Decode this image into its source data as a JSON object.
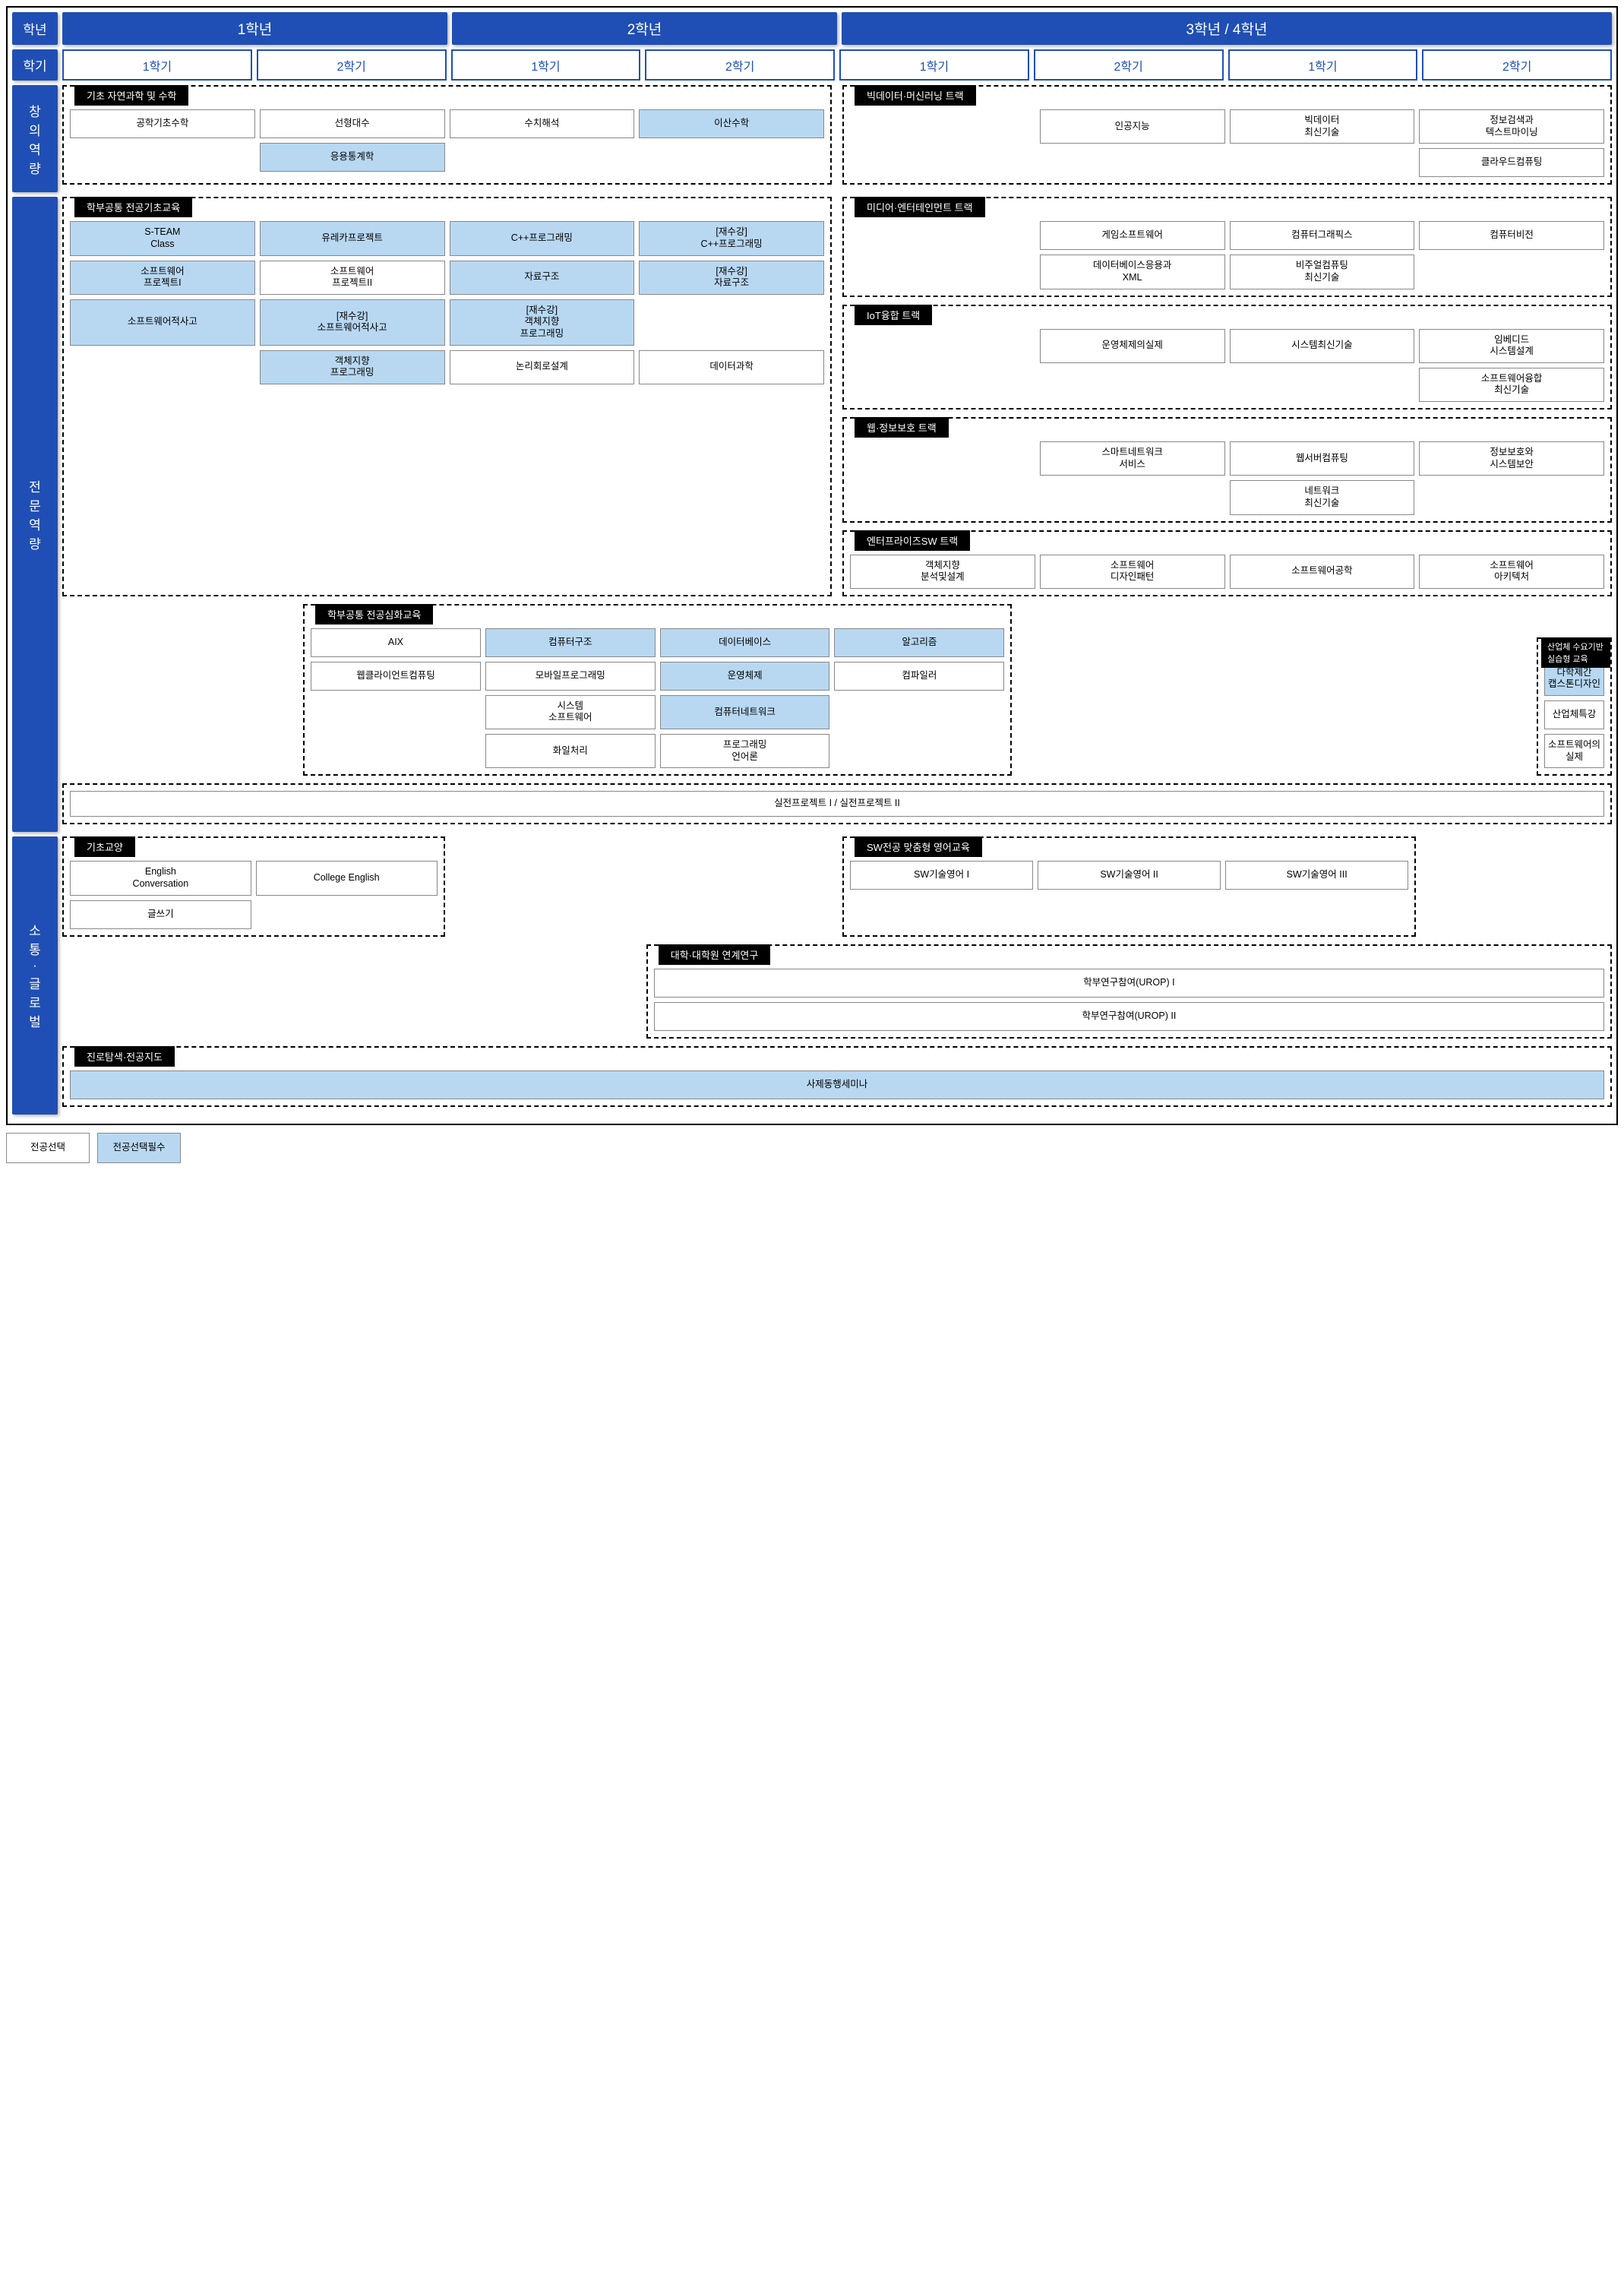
{
  "colors": {
    "primary": "#1f4fb4",
    "required_bg": "#b8d8f2",
    "border": "#000000"
  },
  "header": {
    "grade_label": "학년",
    "semester_label": "학기",
    "grades": [
      "1학년",
      "2학년",
      "3학년 / 4학년"
    ],
    "semesters": [
      "1학기",
      "2학기",
      "1학기",
      "2학기",
      "1학기",
      "2학기",
      "1학기",
      "2학기"
    ]
  },
  "categories": {
    "creative": "창\n의\n역\n량",
    "pro": "전\n문\n역\n량",
    "global": "소\n통\n·\n글\n로\n벌"
  },
  "groups": {
    "basic_sci": {
      "title": "기초 자연과학 및 수학",
      "courses": [
        {
          "name": "공학기초수학",
          "req": false,
          "col": 1,
          "row": 1
        },
        {
          "name": "선형대수",
          "req": false,
          "col": 2,
          "row": 1
        },
        {
          "name": "수치해석",
          "req": false,
          "col": 3,
          "row": 1
        },
        {
          "name": "이산수학",
          "req": true,
          "col": 4,
          "row": 1
        },
        {
          "name": "응용통계학",
          "req": true,
          "col": 2,
          "row": 2
        }
      ]
    },
    "bigdata": {
      "title": "빅데이터·머신러닝 트랙",
      "courses": [
        {
          "name": "인공지능",
          "req": false,
          "col": 2,
          "row": 1
        },
        {
          "name": "빅데이터\n최신기술",
          "req": false,
          "col": 3,
          "row": 1
        },
        {
          "name": "정보검색과\n텍스트마이닝",
          "req": false,
          "col": 4,
          "row": 1
        },
        {
          "name": "클라우드컴퓨팅",
          "req": false,
          "col": 4,
          "row": 2
        }
      ]
    },
    "dept_basic": {
      "title": "학부공통 전공기초교육",
      "courses": [
        {
          "name": "S-TEAM\nClass",
          "req": true,
          "col": 1,
          "row": 1
        },
        {
          "name": "유레카프로젝트",
          "req": true,
          "col": 2,
          "row": 1
        },
        {
          "name": "C++프로그래밍",
          "req": true,
          "col": 3,
          "row": 1
        },
        {
          "name": "[재수강]\nC++프로그래밍",
          "req": true,
          "col": 4,
          "row": 1
        },
        {
          "name": "소프트웨어\n프로젝트I",
          "req": true,
          "col": 1,
          "row": 2
        },
        {
          "name": "소프트웨어\n프로젝트II",
          "req": false,
          "col": 2,
          "row": 2
        },
        {
          "name": "자료구조",
          "req": true,
          "col": 3,
          "row": 2
        },
        {
          "name": "[재수강]\n자료구조",
          "req": true,
          "col": 4,
          "row": 2
        },
        {
          "name": "소프트웨어적사고",
          "req": true,
          "col": 1,
          "row": 3
        },
        {
          "name": "[재수강]\n소프트웨어적사고",
          "req": true,
          "col": 2,
          "row": 3
        },
        {
          "name": "[재수강]\n객체지향\n프로그래밍",
          "req": true,
          "col": 3,
          "row": 3
        },
        {
          "name": "객체지향\n프로그래밍",
          "req": true,
          "col": 2,
          "row": 4
        },
        {
          "name": "논리회로설계",
          "req": false,
          "col": 3,
          "row": 4
        },
        {
          "name": "데이터과학",
          "req": false,
          "col": 4,
          "row": 4
        }
      ]
    },
    "media": {
      "title": "미디어·엔터테인먼트 트랙",
      "courses": [
        {
          "name": "게임소프트웨어",
          "req": false,
          "col": 2,
          "row": 1
        },
        {
          "name": "컴퓨터그래픽스",
          "req": false,
          "col": 3,
          "row": 1
        },
        {
          "name": "컴퓨터비전",
          "req": false,
          "col": 4,
          "row": 1
        },
        {
          "name": "데이터베이스응용과\nXML",
          "req": false,
          "col": 2,
          "row": 2
        },
        {
          "name": "비주얼컴퓨팅\n최신기술",
          "req": false,
          "col": 3,
          "row": 2
        }
      ]
    },
    "iot": {
      "title": "IoT융합 트랙",
      "courses": [
        {
          "name": "운영체제의실제",
          "req": false,
          "col": 2,
          "row": 1
        },
        {
          "name": "시스템최신기술",
          "req": false,
          "col": 3,
          "row": 1
        },
        {
          "name": "임베디드\n시스템설계",
          "req": false,
          "col": 4,
          "row": 1
        },
        {
          "name": "소프트웨어융합\n최신기술",
          "req": false,
          "col": 4,
          "row": 2
        }
      ]
    },
    "web": {
      "title": "웹·정보보호 트랙",
      "courses": [
        {
          "name": "스마트네트워크\n서비스",
          "req": false,
          "col": 2,
          "row": 1
        },
        {
          "name": "웹서버컴퓨팅",
          "req": false,
          "col": 3,
          "row": 1
        },
        {
          "name": "정보보호와\n시스템보안",
          "req": false,
          "col": 4,
          "row": 1
        },
        {
          "name": "네트워크\n최신기술",
          "req": false,
          "col": 3,
          "row": 2
        }
      ]
    },
    "enterprise": {
      "title": "엔터프라이즈SW 트랙",
      "courses": [
        {
          "name": "객체지향\n분석및설계",
          "req": false,
          "col": 1,
          "row": 1
        },
        {
          "name": "소프트웨어\n디자인패턴",
          "req": false,
          "col": 2,
          "row": 1
        },
        {
          "name": "소프트웨어공학",
          "req": false,
          "col": 3,
          "row": 1
        },
        {
          "name": "소프트웨어\n아키텍처",
          "req": false,
          "col": 4,
          "row": 1
        }
      ]
    },
    "dept_adv": {
      "title": "학부공통 전공심화교육",
      "courses": [
        {
          "name": "AIX",
          "req": false,
          "col": 1,
          "row": 1
        },
        {
          "name": "컴퓨터구조",
          "req": true,
          "col": 2,
          "row": 1
        },
        {
          "name": "데이터베이스",
          "req": true,
          "col": 3,
          "row": 1
        },
        {
          "name": "알고리즘",
          "req": true,
          "col": 4,
          "row": 1
        },
        {
          "name": "웹클라이언트컴퓨팅",
          "req": false,
          "col": 1,
          "row": 2
        },
        {
          "name": "모바일프로그래밍",
          "req": false,
          "col": 2,
          "row": 2
        },
        {
          "name": "운영체제",
          "req": true,
          "col": 3,
          "row": 2
        },
        {
          "name": "컴파일러",
          "req": false,
          "col": 4,
          "row": 2
        },
        {
          "name": "시스템\n소프트웨어",
          "req": false,
          "col": 2,
          "row": 3
        },
        {
          "name": "컴퓨터네트워크",
          "req": true,
          "col": 3,
          "row": 3
        },
        {
          "name": "화일처리",
          "req": false,
          "col": 2,
          "row": 4
        },
        {
          "name": "프로그래밍\n언어론",
          "req": false,
          "col": 3,
          "row": 4
        }
      ]
    },
    "industry": {
      "title": "산업체 수요기반 실습형 교육",
      "courses": [
        {
          "name": "다학제간\n캡스톤디자인",
          "req": true,
          "col": 1,
          "row": 1
        },
        {
          "name": "산업체특강",
          "req": false,
          "col": 1,
          "row": 2
        },
        {
          "name": "소프트웨어의\n실제",
          "req": false,
          "col": 1,
          "row": 3
        }
      ]
    },
    "project": "실전프로젝트 I / 실전프로젝트 II",
    "liberal": {
      "title": "기초교양",
      "courses": [
        {
          "name": "English\nConversation",
          "req": false,
          "col": 1,
          "row": 1
        },
        {
          "name": "College English",
          "req": false,
          "col": 2,
          "row": 1
        },
        {
          "name": "글쓰기",
          "req": false,
          "col": 1,
          "row": 2
        }
      ]
    },
    "sw_eng": {
      "title": "SW전공 맞춤형 영어교육",
      "courses": [
        {
          "name": "SW기술영어 I",
          "req": false,
          "col": 1,
          "row": 1
        },
        {
          "name": "SW기술영어 II",
          "req": false,
          "col": 2,
          "row": 1
        },
        {
          "name": "SW기술영어 III",
          "req": false,
          "col": 3,
          "row": 1
        }
      ]
    },
    "grad": {
      "title": "대학·대학원 연계연구",
      "courses": [
        {
          "name": "학부연구참여(UROP) I",
          "req": false
        },
        {
          "name": "학부연구참여(UROP) II",
          "req": false
        }
      ]
    },
    "career": {
      "title": "진로탐색·전공지도",
      "course": "사제동행세미나"
    }
  },
  "legend": {
    "elective": "전공선택",
    "required": "전공선택필수"
  }
}
